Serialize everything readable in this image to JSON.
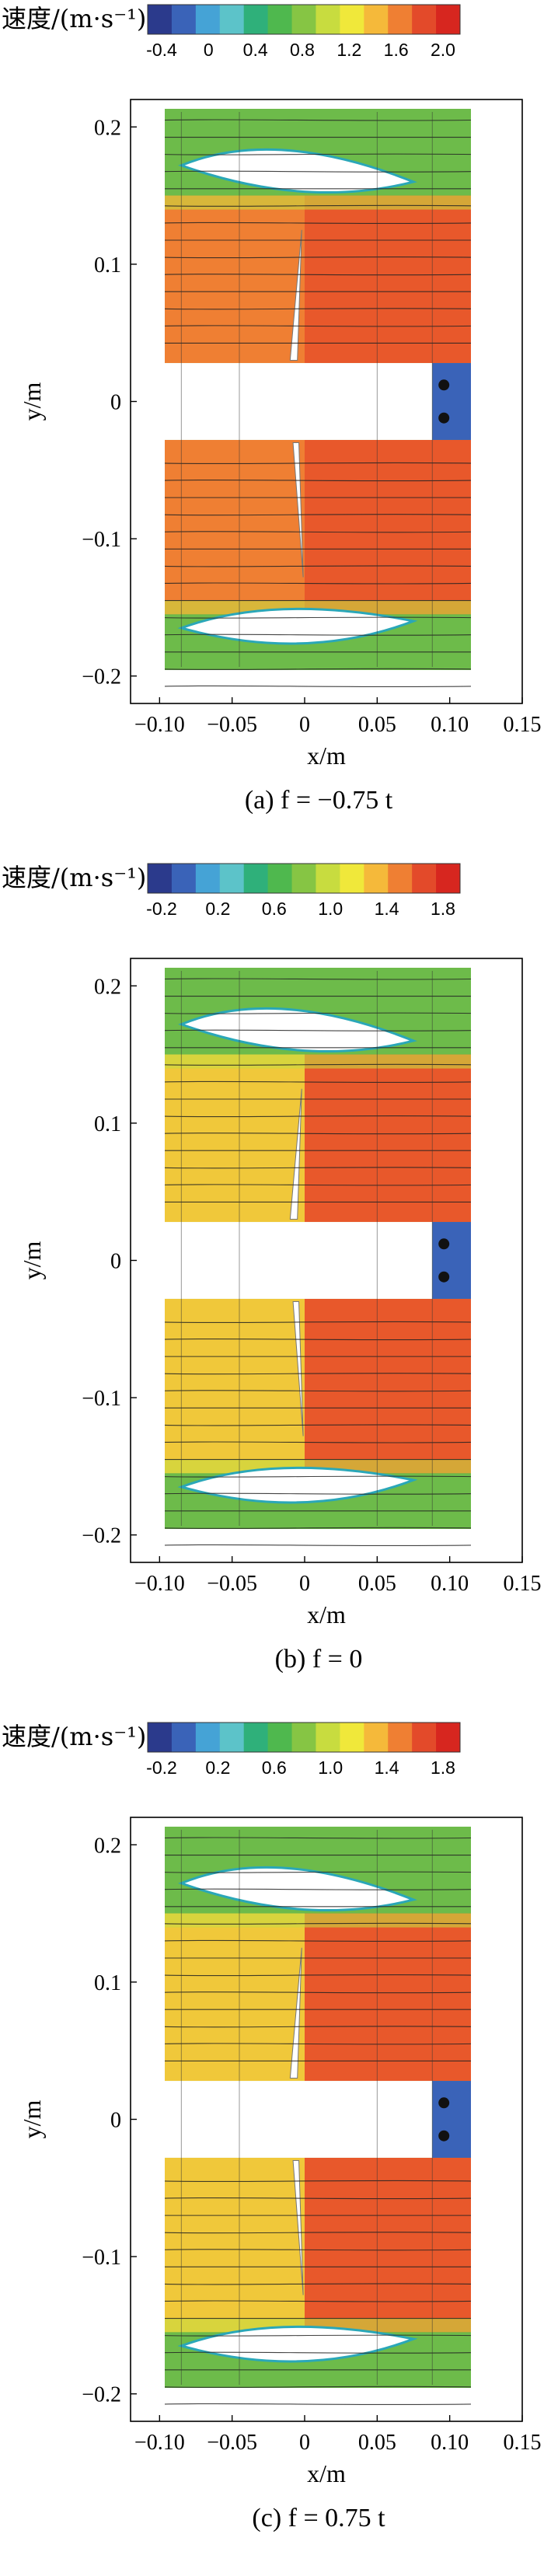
{
  "colorbar_title": "速度/(m·s⁻¹)",
  "colormap": [
    "#2b3a8c",
    "#3a63b8",
    "#45a3d6",
    "#5cc3c9",
    "#2fb07a",
    "#4fb84e",
    "#86c544",
    "#c8dc3f",
    "#f0e83a",
    "#f5b93a",
    "#ef7f33",
    "#e34a2a",
    "#d7261f"
  ],
  "panels": [
    {
      "caption": "(a) f = −0.75 t",
      "colorbar_ticks": [
        "-0.4",
        "0",
        "0.4",
        "0.8",
        "1.2",
        "1.6",
        "2.0"
      ],
      "xlabel": "x/m",
      "ylabel": "y/m",
      "xticks": [
        "−0.10",
        "−0.05",
        "0",
        "0.05",
        "0.10",
        "0.15"
      ],
      "yticks": [
        "0.2",
        "0.1",
        "0",
        "−0.1",
        "−0.2"
      ]
    },
    {
      "caption": "(b) f = 0",
      "colorbar_ticks": [
        "-0.2",
        "0.2",
        "0.6",
        "1.0",
        "1.4",
        "1.8"
      ],
      "xlabel": "x/m",
      "ylabel": "y/m",
      "xticks": [
        "−0.10",
        "−0.05",
        "0",
        "0.05",
        "0.10",
        "0.15"
      ],
      "yticks": [
        "0.2",
        "0.1",
        "0",
        "−0.1",
        "−0.2"
      ]
    },
    {
      "caption": "(c) f = 0.75 t",
      "colorbar_ticks": [
        "-0.2",
        "0.2",
        "0.6",
        "1.0",
        "1.4",
        "1.8"
      ],
      "xlabel": "x/m",
      "ylabel": "y/m",
      "xticks": [
        "−0.10",
        "−0.05",
        "0",
        "0.05",
        "0.10",
        "0.15"
      ],
      "yticks": [
        "0.2",
        "0.1",
        "0",
        "−0.1",
        "−0.2"
      ]
    }
  ],
  "chart_data": [
    {
      "type": "heatmap",
      "title": "(a) f = −0.75 t",
      "xlabel": "x/m",
      "ylabel": "y/m",
      "xlim": [
        -0.12,
        0.15
      ],
      "ylim": [
        -0.22,
        0.22
      ],
      "colorbar_range": [
        -0.4,
        2.0
      ]
    },
    {
      "type": "heatmap",
      "title": "(b) f = 0",
      "xlabel": "x/m",
      "ylabel": "y/m",
      "xlim": [
        -0.12,
        0.15
      ],
      "ylim": [
        -0.22,
        0.22
      ],
      "colorbar_range": [
        -0.2,
        1.8
      ]
    },
    {
      "type": "heatmap",
      "title": "(c) f = 0.75 t",
      "xlabel": "x/m",
      "ylabel": "y/m",
      "xlim": [
        -0.12,
        0.15
      ],
      "ylim": [
        -0.22,
        0.22
      ],
      "colorbar_range": [
        -0.2,
        1.8
      ]
    }
  ]
}
